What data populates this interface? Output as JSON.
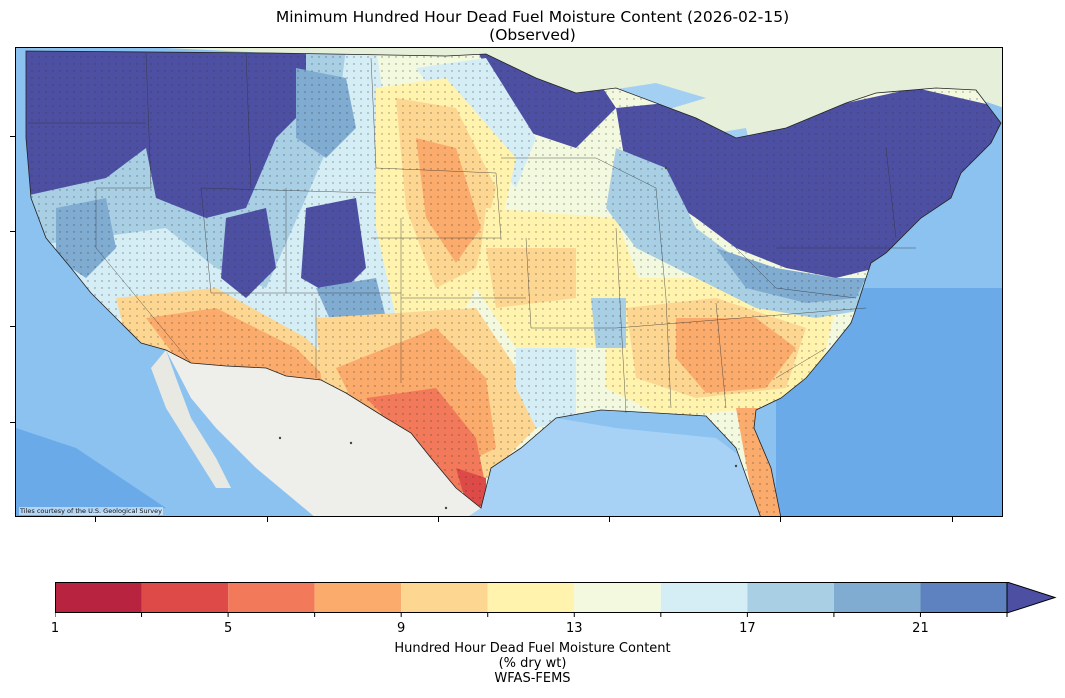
{
  "title": {
    "line1": "Minimum Hundred Hour Dead Fuel Moisture Content (2026-02-15)",
    "line2": "(Observed)"
  },
  "map": {
    "attribution": "Tiles courtesy of the U.S. Geological Survey"
  },
  "colorbar": {
    "bins": [
      {
        "min": 1,
        "max": 3,
        "color": "#b82340"
      },
      {
        "min": 3,
        "max": 5,
        "color": "#dd4a47"
      },
      {
        "min": 5,
        "max": 7,
        "color": "#f27a5a"
      },
      {
        "min": 7,
        "max": 9,
        "color": "#fbac6c"
      },
      {
        "min": 9,
        "max": 11,
        "color": "#fdd692"
      },
      {
        "min": 11,
        "max": 13,
        "color": "#fff3ae"
      },
      {
        "min": 13,
        "max": 15,
        "color": "#f3f9df"
      },
      {
        "min": 15,
        "max": 17,
        "color": "#d5edf4"
      },
      {
        "min": 17,
        "max": 19,
        "color": "#a9cfe4"
      },
      {
        "min": 19,
        "max": 21,
        "color": "#80acd2"
      },
      {
        "min": 21,
        "max": 23,
        "color": "#5e82bf"
      }
    ],
    "extend_color": "#4d4fa3",
    "extend": "max",
    "tick_labels": [
      "1",
      "5",
      "9",
      "13",
      "17",
      "21"
    ],
    "label_line1": "Hundred Hour Dead Fuel Moisture Content",
    "label_line2": "(% dry wt)",
    "label_line3": "WFAS-FEMS"
  }
}
